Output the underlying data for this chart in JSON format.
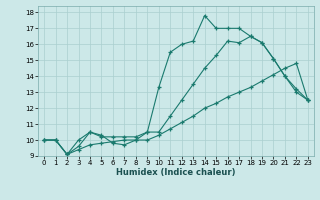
{
  "xlabel": "Humidex (Indice chaleur)",
  "bg_color": "#cce8e8",
  "grid_color": "#aacfcf",
  "line_color": "#1a7a6e",
  "xlim": [
    -0.5,
    23.5
  ],
  "ylim": [
    9,
    18.4
  ],
  "xticks": [
    0,
    1,
    2,
    3,
    4,
    5,
    6,
    7,
    8,
    9,
    10,
    11,
    12,
    13,
    14,
    15,
    16,
    17,
    18,
    19,
    20,
    21,
    22,
    23
  ],
  "yticks": [
    9,
    10,
    11,
    12,
    13,
    14,
    15,
    16,
    17,
    18
  ],
  "line1_x": [
    0,
    1,
    2,
    3,
    4,
    5,
    6,
    7,
    8,
    9,
    10,
    11,
    12,
    13,
    14,
    15,
    16,
    17,
    18,
    19,
    20,
    21,
    22,
    23
  ],
  "line1_y": [
    10.0,
    10.0,
    9.1,
    10.0,
    10.5,
    10.3,
    9.8,
    9.7,
    10.0,
    10.5,
    13.3,
    15.5,
    16.0,
    16.2,
    17.8,
    17.0,
    17.0,
    17.0,
    16.5,
    16.1,
    15.1,
    14.0,
    13.0,
    12.5
  ],
  "line2_x": [
    0,
    1,
    2,
    3,
    4,
    5,
    6,
    7,
    8,
    9,
    10,
    11,
    12,
    13,
    14,
    15,
    16,
    17,
    18,
    19,
    20,
    21,
    22,
    23
  ],
  "line2_y": [
    10.0,
    10.0,
    9.1,
    9.6,
    10.5,
    10.2,
    10.2,
    10.2,
    10.2,
    10.5,
    10.5,
    11.5,
    12.5,
    13.5,
    14.5,
    15.3,
    16.2,
    16.1,
    16.5,
    16.1,
    15.1,
    14.0,
    13.2,
    12.5
  ],
  "line3_x": [
    0,
    1,
    2,
    3,
    4,
    5,
    6,
    7,
    8,
    9,
    10,
    11,
    12,
    13,
    14,
    15,
    16,
    17,
    18,
    19,
    20,
    21,
    22,
    23
  ],
  "line3_y": [
    10.0,
    10.0,
    9.1,
    9.4,
    9.7,
    9.8,
    9.9,
    10.0,
    10.0,
    10.0,
    10.3,
    10.7,
    11.1,
    11.5,
    12.0,
    12.3,
    12.7,
    13.0,
    13.3,
    13.7,
    14.1,
    14.5,
    14.8,
    12.5
  ]
}
